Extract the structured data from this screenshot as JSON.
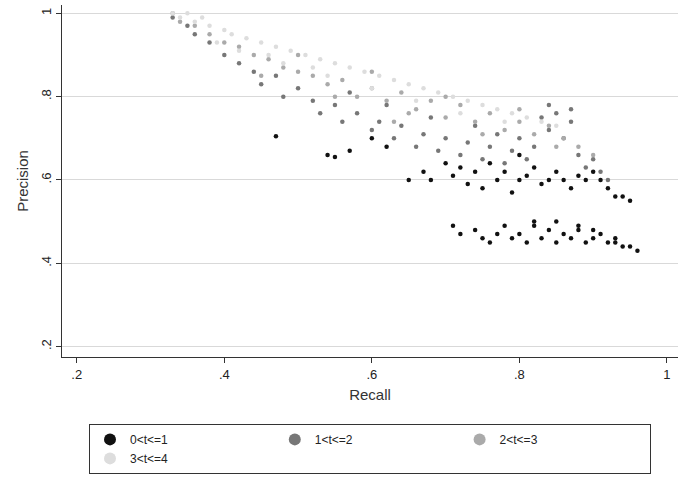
{
  "chart_data": {
    "type": "scatter",
    "x_label": "Recall",
    "y_label": "Precision",
    "xlim": [
      0.18,
      1.015
    ],
    "ylim": [
      0.175,
      1.02
    ],
    "xticks": [
      {
        "value": 0.2,
        "label": ".2"
      },
      {
        "value": 0.4,
        "label": ".4"
      },
      {
        "value": 0.6,
        "label": ".6"
      },
      {
        "value": 0.8,
        "label": ".8"
      },
      1
    ],
    "yticks": [
      {
        "value": 0.2,
        "label": ".2"
      },
      {
        "value": 0.4,
        "label": ".4"
      },
      {
        "value": 0.6,
        "label": ".6"
      },
      {
        "value": 0.8,
        "label": ".8"
      },
      1
    ],
    "grid": "y",
    "legend": "bottom",
    "marker": "circle",
    "series": [
      {
        "name": "0<t<=1",
        "color": "#111111",
        "x": [
          0.71,
          0.72,
          0.74,
          0.75,
          0.77,
          0.78,
          0.79,
          0.8,
          0.81,
          0.82,
          0.83,
          0.84,
          0.85,
          0.86,
          0.87,
          0.88,
          0.89,
          0.9,
          0.91,
          0.92,
          0.93,
          0.94,
          0.95,
          0.96,
          0.76,
          0.82,
          0.88,
          0.93,
          0.85,
          0.9,
          0.65,
          0.67,
          0.68,
          0.7,
          0.71,
          0.72,
          0.73,
          0.74,
          0.75,
          0.76,
          0.77,
          0.78,
          0.79,
          0.8,
          0.81,
          0.82,
          0.83,
          0.84,
          0.85,
          0.86,
          0.87,
          0.88,
          0.89,
          0.9,
          0.91,
          0.92,
          0.93,
          0.94,
          0.95,
          0.8,
          0.47,
          0.54,
          0.55,
          0.57,
          0.6,
          0.62
        ],
        "values": [
          0.49,
          0.47,
          0.48,
          0.46,
          0.47,
          0.49,
          0.46,
          0.47,
          0.45,
          0.5,
          0.46,
          0.48,
          0.45,
          0.47,
          0.46,
          0.49,
          0.45,
          0.46,
          0.47,
          0.45,
          0.46,
          0.44,
          0.44,
          0.43,
          0.45,
          0.49,
          0.48,
          0.45,
          0.5,
          0.48,
          0.6,
          0.62,
          0.6,
          0.64,
          0.61,
          0.63,
          0.59,
          0.62,
          0.58,
          0.64,
          0.6,
          0.62,
          0.57,
          0.66,
          0.61,
          0.63,
          0.59,
          0.6,
          0.62,
          0.6,
          0.58,
          0.61,
          0.6,
          0.62,
          0.6,
          0.58,
          0.56,
          0.56,
          0.55,
          0.6,
          0.705,
          0.66,
          0.655,
          0.67,
          0.7,
          0.68
        ]
      },
      {
        "name": "1<t<=2",
        "color": "#777777",
        "x": [
          0.33,
          0.35,
          0.36,
          0.38,
          0.4,
          0.42,
          0.44,
          0.45,
          0.47,
          0.48,
          0.5,
          0.52,
          0.53,
          0.55,
          0.56,
          0.58,
          0.6,
          0.61,
          0.63,
          0.64,
          0.66,
          0.67,
          0.69,
          0.7,
          0.72,
          0.73,
          0.75,
          0.76,
          0.78,
          0.79,
          0.8,
          0.81,
          0.82,
          0.83,
          0.84,
          0.85,
          0.86,
          0.87,
          0.88,
          0.89,
          0.9,
          0.91,
          0.92,
          0.84,
          0.87,
          0.57,
          0.62,
          0.68,
          0.74,
          0.77
        ],
        "values": [
          0.99,
          0.97,
          0.95,
          0.93,
          0.9,
          0.88,
          0.86,
          0.83,
          0.85,
          0.8,
          0.82,
          0.79,
          0.76,
          0.78,
          0.74,
          0.76,
          0.72,
          0.74,
          0.7,
          0.73,
          0.68,
          0.71,
          0.67,
          0.7,
          0.66,
          0.69,
          0.65,
          0.68,
          0.64,
          0.67,
          0.7,
          0.65,
          0.68,
          0.75,
          0.72,
          0.76,
          0.7,
          0.74,
          0.66,
          0.63,
          0.65,
          0.62,
          0.6,
          0.78,
          0.77,
          0.81,
          0.78,
          0.75,
          0.73,
          0.71
        ]
      },
      {
        "name": "2<t<=3",
        "color": "#aaaaaa",
        "x": [
          0.33,
          0.34,
          0.36,
          0.38,
          0.4,
          0.42,
          0.44,
          0.46,
          0.48,
          0.5,
          0.52,
          0.54,
          0.56,
          0.58,
          0.6,
          0.62,
          0.64,
          0.66,
          0.68,
          0.7,
          0.72,
          0.74,
          0.76,
          0.78,
          0.8,
          0.82,
          0.84,
          0.86,
          0.88,
          0.9,
          0.45,
          0.55,
          0.65,
          0.75,
          0.85,
          0.5,
          0.6,
          0.7,
          0.8,
          0.63
        ],
        "values": [
          1,
          0.98,
          0.97,
          0.95,
          0.93,
          0.92,
          0.9,
          0.89,
          0.87,
          0.86,
          0.85,
          0.83,
          0.84,
          0.8,
          0.82,
          0.79,
          0.81,
          0.77,
          0.79,
          0.75,
          0.78,
          0.74,
          0.76,
          0.72,
          0.74,
          0.71,
          0.73,
          0.7,
          0.68,
          0.66,
          0.85,
          0.8,
          0.76,
          0.71,
          0.68,
          0.9,
          0.86,
          0.8,
          0.77,
          0.74
        ]
      },
      {
        "name": "3<t<=4",
        "color": "#dddddd",
        "x": [
          0.33,
          0.34,
          0.35,
          0.36,
          0.37,
          0.38,
          0.4,
          0.41,
          0.43,
          0.45,
          0.47,
          0.49,
          0.51,
          0.53,
          0.55,
          0.57,
          0.59,
          0.61,
          0.63,
          0.65,
          0.67,
          0.69,
          0.71,
          0.73,
          0.75,
          0.77,
          0.79,
          0.81,
          0.83,
          0.85,
          0.42,
          0.48,
          0.54,
          0.6,
          0.66,
          0.72,
          0.78,
          0.39,
          0.46,
          0.52
        ],
        "values": [
          1,
          0.99,
          1,
          0.98,
          0.99,
          0.97,
          0.96,
          0.95,
          0.94,
          0.93,
          0.92,
          0.91,
          0.9,
          0.89,
          0.88,
          0.87,
          0.86,
          0.85,
          0.84,
          0.83,
          0.82,
          0.81,
          0.8,
          0.79,
          0.78,
          0.77,
          0.76,
          0.75,
          0.74,
          0.73,
          0.91,
          0.88,
          0.85,
          0.82,
          0.79,
          0.76,
          0.74,
          0.93,
          0.9,
          0.87
        ]
      }
    ]
  }
}
